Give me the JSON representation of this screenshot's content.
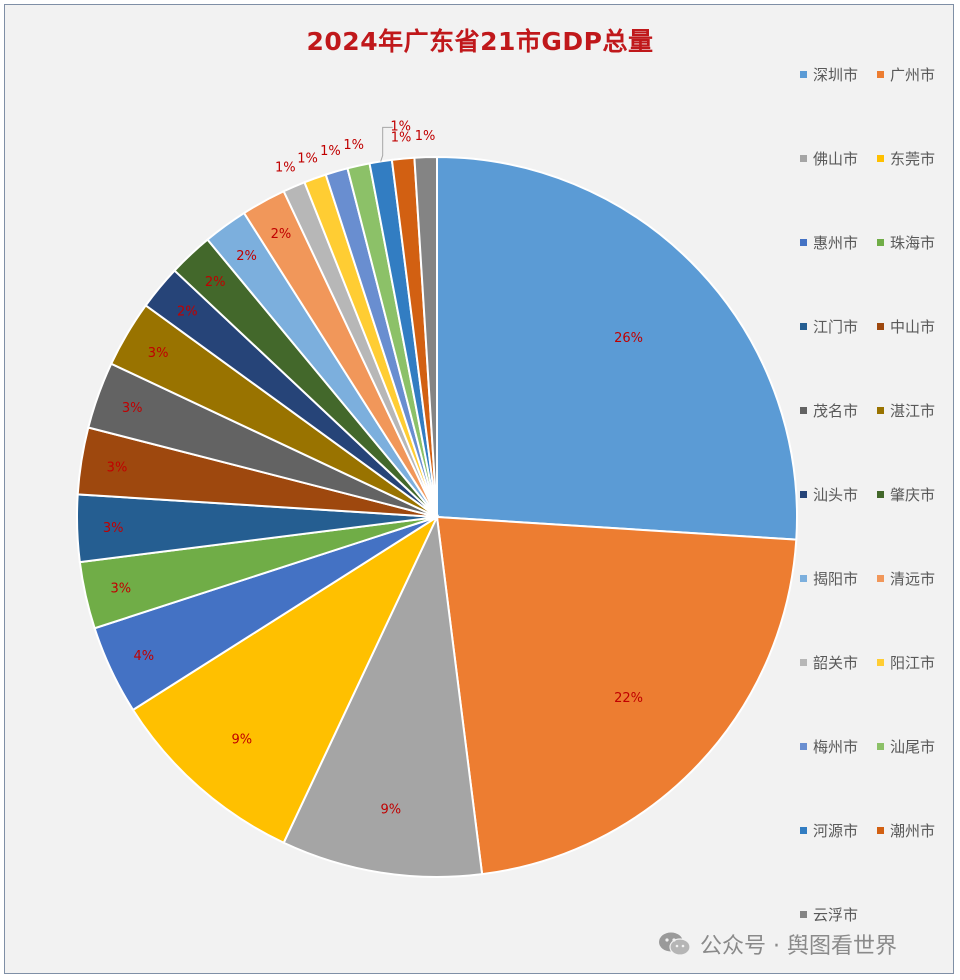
{
  "chart_data": {
    "type": "pie",
    "title": "2024年广东省21市GDP总量",
    "start_angle_deg": 0,
    "direction": "clockwise",
    "slices": [
      {
        "label": "深圳市",
        "value": 26,
        "data_label": "26%",
        "color": "#5b9bd5"
      },
      {
        "label": "广州市",
        "value": 22,
        "data_label": "22%",
        "color": "#ed7d31"
      },
      {
        "label": "佛山市",
        "value": 9,
        "data_label": "9%",
        "color": "#a5a5a5"
      },
      {
        "label": "东莞市",
        "value": 9,
        "data_label": "9%",
        "color": "#ffc000"
      },
      {
        "label": "惠州市",
        "value": 4,
        "data_label": "4%",
        "color": "#4472c4"
      },
      {
        "label": "珠海市",
        "value": 3,
        "data_label": "3%",
        "color": "#70ad47"
      },
      {
        "label": "江门市",
        "value": 3,
        "data_label": "3%",
        "color": "#255e91"
      },
      {
        "label": "中山市",
        "value": 3,
        "data_label": "3%",
        "color": "#9e480e"
      },
      {
        "label": "茂名市",
        "value": 3,
        "data_label": "3%",
        "color": "#636363"
      },
      {
        "label": "湛江市",
        "value": 3,
        "data_label": "3%",
        "color": "#997300"
      },
      {
        "label": "汕头市",
        "value": 2,
        "data_label": "2%",
        "color": "#264478"
      },
      {
        "label": "肇庆市",
        "value": 2,
        "data_label": "2%",
        "color": "#43682b"
      },
      {
        "label": "揭阳市",
        "value": 2,
        "data_label": "2%",
        "color": "#7cafdd"
      },
      {
        "label": "清远市",
        "value": 2,
        "data_label": "2%",
        "color": "#f1975a"
      },
      {
        "label": "韶关市",
        "value": 1,
        "data_label": "1%",
        "color": "#b7b7b7"
      },
      {
        "label": "阳江市",
        "value": 1,
        "data_label": "1%",
        "color": "#ffcd33"
      },
      {
        "label": "梅州市",
        "value": 1,
        "data_label": "1%",
        "color": "#698ed0"
      },
      {
        "label": "汕尾市",
        "value": 1,
        "data_label": "1%",
        "color": "#8cc168"
      },
      {
        "label": "河源市",
        "value": 1,
        "data_label": "1%",
        "color": "#327dc2"
      },
      {
        "label": "潮州市",
        "value": 1,
        "data_label": "1%",
        "color": "#d26012"
      },
      {
        "label": "云浮市",
        "value": 1,
        "data_label": "1%",
        "color": "#848484"
      }
    ],
    "legend_position": "right",
    "data_label_color": "#c00000"
  },
  "watermark": {
    "icon": "wechat-icon",
    "text": "公众号 · 舆图看世界"
  }
}
